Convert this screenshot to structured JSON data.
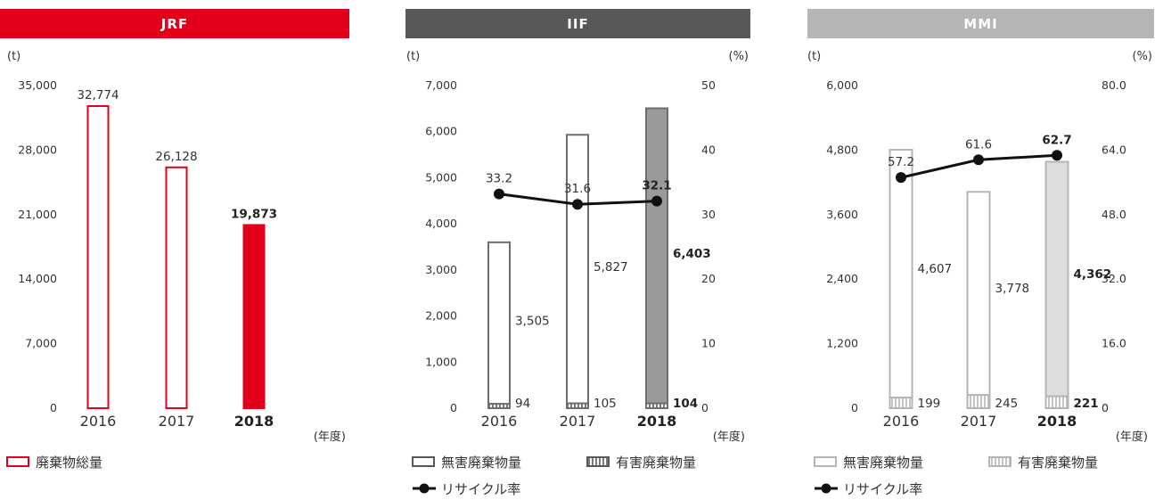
{
  "chart_data": [
    {
      "type": "bar",
      "title": "JRF",
      "header_color": "#e2001a",
      "y_unit": "(t)",
      "x_unit": "(年度)",
      "ylim": [
        0,
        35000
      ],
      "yticks": [
        "0",
        "7,000",
        "14,000",
        "21,000",
        "28,000",
        "35,000"
      ],
      "categories": [
        "2016",
        "2017",
        "2018"
      ],
      "series": [
        {
          "name": "廃棄物総量",
          "values": [
            32774,
            26128,
            19873
          ],
          "labels": [
            "32,774",
            "26,128",
            "19,873"
          ]
        }
      ],
      "legend": [
        {
          "label": "廃棄物総量",
          "kind": "box",
          "color": "#e2001a"
        }
      ],
      "highlight": "2018"
    },
    {
      "type": "bar+line",
      "title": "IIF",
      "header_color": "#595757",
      "y_unit": "(t)",
      "y2_unit": "(%)",
      "x_unit": "(年度)",
      "ylim": [
        0,
        7000
      ],
      "y2lim": [
        0,
        50
      ],
      "yticks": [
        "0",
        "1,000",
        "2,000",
        "3,000",
        "4,000",
        "5,000",
        "6,000",
        "7,000"
      ],
      "y2ticks": [
        "0",
        "10",
        "20",
        "30",
        "40",
        "50"
      ],
      "categories": [
        "2016",
        "2017",
        "2018"
      ],
      "series": [
        {
          "name": "有害廃棄物量",
          "values": [
            94,
            105,
            104
          ],
          "labels": [
            "94",
            "105",
            "104"
          ]
        },
        {
          "name": "無害廃棄物量",
          "values": [
            3505,
            5827,
            6403
          ],
          "labels": [
            "3,505",
            "5,827",
            "6,403"
          ]
        },
        {
          "name": "リサイクル率",
          "axis": "y2",
          "values": [
            33.2,
            31.6,
            32.1
          ],
          "labels": [
            "33.2",
            "31.6",
            "32.1"
          ]
        }
      ],
      "legend": [
        {
          "label": "無害廃棄物量",
          "kind": "box",
          "color": "#595757"
        },
        {
          "label": "有害廃棄物量",
          "kind": "hatch",
          "color": "#595757"
        },
        {
          "label": "リサイクル率",
          "kind": "line"
        }
      ],
      "highlight": "2018",
      "color": "#6e6e6e",
      "fill_highlight": "#9a9a9a"
    },
    {
      "type": "bar+line",
      "title": "MMI",
      "header_color": "#b5b5b6",
      "y_unit": "(t)",
      "y2_unit": "(%)",
      "x_unit": "(年度)",
      "ylim": [
        0,
        6000
      ],
      "y2lim": [
        0,
        80
      ],
      "yticks": [
        "0",
        "1,200",
        "2,400",
        "3,600",
        "4,800",
        "6,000"
      ],
      "y2ticks": [
        "0",
        "16.0",
        "32.0",
        "48.0",
        "64.0",
        "80.0"
      ],
      "categories": [
        "2016",
        "2017",
        "2018"
      ],
      "series": [
        {
          "name": "有害廃棄物量",
          "values": [
            199,
            245,
            221
          ],
          "labels": [
            "199",
            "245",
            "221"
          ]
        },
        {
          "name": "無害廃棄物量",
          "values": [
            4607,
            3778,
            4362
          ],
          "labels": [
            "4,607",
            "3,778",
            "4,362"
          ]
        },
        {
          "name": "リサイクル率",
          "axis": "y2",
          "values": [
            57.2,
            61.6,
            62.7
          ],
          "labels": [
            "57.2",
            "61.6",
            "62.7"
          ]
        }
      ],
      "legend": [
        {
          "label": "無害廃棄物量",
          "kind": "box",
          "color": "#b5b5b6"
        },
        {
          "label": "有害廃棄物量",
          "kind": "hatch",
          "color": "#b5b5b6"
        },
        {
          "label": "リサイクル率",
          "kind": "line"
        }
      ],
      "highlight": "2018",
      "color": "#b5b5b6",
      "fill_highlight": "#dcdddd"
    }
  ]
}
